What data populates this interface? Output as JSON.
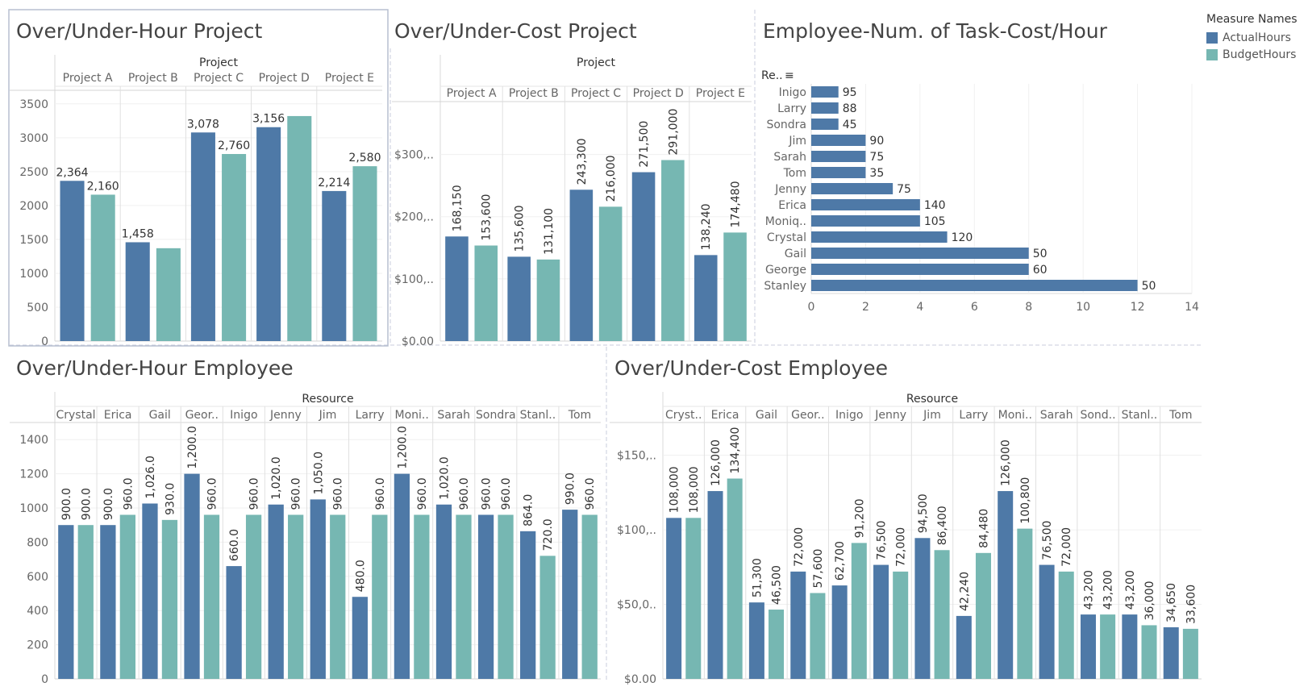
{
  "colors": {
    "actual": "#4e79a7",
    "budget": "#76b7b2",
    "grid": "#e6e6e6",
    "divider": "#c8cedd"
  },
  "legend": {
    "title": "Measure Names",
    "items": [
      {
        "label": "ActualHours",
        "color": "#4e79a7"
      },
      {
        "label": "BudgetHours",
        "color": "#76b7b2"
      }
    ]
  },
  "chart_data": [
    {
      "id": "hour-project",
      "type": "bar",
      "title": "Over/Under-Hour Project",
      "column_header": "Project",
      "categories": [
        "Project A",
        "Project B",
        "Project C",
        "Project D",
        "Project E"
      ],
      "series": [
        {
          "name": "ActualHours",
          "values": [
            2364,
            1458,
            3078,
            3156,
            2214
          ]
        },
        {
          "name": "BudgetHours",
          "values": [
            2160,
            1370,
            2760,
            3320,
            2580
          ]
        }
      ],
      "data_labels": [
        [
          "2,364",
          "1,458",
          "3,078",
          "3,156",
          "2,214"
        ],
        [
          "2,160",
          "",
          "2,760",
          "",
          "2,580"
        ]
      ],
      "yticks": [
        "0",
        "500",
        "1000",
        "1500",
        "2000",
        "2500",
        "3000",
        "3500"
      ],
      "ylim": [
        0,
        3700
      ]
    },
    {
      "id": "cost-project",
      "type": "bar",
      "title": "Over/Under-Cost Project",
      "column_header": "Project",
      "categories": [
        "Project A",
        "Project B",
        "Project C",
        "Project D",
        "Project E"
      ],
      "series": [
        {
          "name": "ActualHours",
          "values": [
            168150,
            135600,
            243300,
            271500,
            138240
          ]
        },
        {
          "name": "BudgetHours",
          "values": [
            153600,
            131100,
            216000,
            291000,
            174480
          ]
        }
      ],
      "data_labels": [
        [
          "168,150",
          "135,600",
          "243,300",
          "271,500",
          "138,240"
        ],
        [
          "153,600",
          "131,100",
          "216,000",
          "291,000",
          "174,480"
        ]
      ],
      "yticks": [
        "$0.00",
        "$100,..",
        "$200,..",
        "$300,.."
      ],
      "ylim": [
        0,
        385000
      ]
    },
    {
      "id": "employee-tasks",
      "type": "bar",
      "orientation": "horizontal",
      "title": "Employee-Num. of Task-Cost/Hour",
      "row_header": "Re..",
      "categories": [
        "Inigo",
        "Larry",
        "Sondra",
        "Jim",
        "Sarah",
        "Tom",
        "Jenny",
        "Erica",
        "Moniq..",
        "Crystal",
        "Gail",
        "George",
        "Stanley"
      ],
      "values": [
        1,
        1,
        1,
        2,
        2,
        2,
        3,
        4,
        4,
        5,
        8,
        8,
        12
      ],
      "data_labels": [
        "95",
        "88",
        "45",
        "90",
        "75",
        "35",
        "75",
        "140",
        "105",
        "120",
        "50",
        "60",
        "50"
      ],
      "xticks": [
        "0",
        "2",
        "4",
        "6",
        "8",
        "10",
        "12",
        "14"
      ],
      "xlim": [
        0,
        14
      ]
    },
    {
      "id": "hour-employee",
      "type": "bar",
      "title": "Over/Under-Hour Employee",
      "column_header": "Resource",
      "categories": [
        "Crystal",
        "Erica",
        "Gail",
        "Geor..",
        "Inigo",
        "Jenny",
        "Jim",
        "Larry",
        "Moni..",
        "Sarah",
        "Sondra",
        "Stanl..",
        "Tom"
      ],
      "series": [
        {
          "name": "ActualHours",
          "values": [
            900,
            900,
            1026,
            1200,
            660,
            1020,
            1050,
            480,
            1200,
            1020,
            960,
            864,
            990
          ]
        },
        {
          "name": "BudgetHours",
          "values": [
            900,
            960,
            930,
            960,
            960,
            960,
            960,
            960,
            960,
            960,
            960,
            720,
            960
          ]
        }
      ],
      "data_labels": [
        [
          "900.0",
          "900.0",
          "1,026.0",
          "1,200.0",
          "660.0",
          "1,020.0",
          "1,050.0",
          "480.0",
          "1,200.0",
          "1,020.0",
          "960.0",
          "864.0",
          "990.0"
        ],
        [
          "900.0",
          "960.0",
          "930.0",
          "960.0",
          "960.0",
          "960.0",
          "960.0",
          "960.0",
          "960.0",
          "960.0",
          "960.0",
          "720.0",
          "960.0"
        ]
      ],
      "yticks": [
        "0",
        "200",
        "400",
        "600",
        "800",
        "1000",
        "1200",
        "1400"
      ],
      "ylim": [
        0,
        1500
      ]
    },
    {
      "id": "cost-employee",
      "type": "bar",
      "title": "Over/Under-Cost Employee",
      "column_header": "Resource",
      "categories": [
        "Cryst..",
        "Erica",
        "Gail",
        "Geor..",
        "Inigo",
        "Jenny",
        "Jim",
        "Larry",
        "Moni..",
        "Sarah",
        "Sond..",
        "Stanl..",
        "Tom"
      ],
      "series": [
        {
          "name": "ActualHours",
          "values": [
            108000,
            126000,
            51300,
            72000,
            62700,
            76500,
            94500,
            42240,
            126000,
            76500,
            43200,
            43200,
            34650
          ]
        },
        {
          "name": "BudgetHours",
          "values": [
            108000,
            134400,
            46500,
            57600,
            91200,
            72000,
            86400,
            84480,
            100800,
            72000,
            43200,
            36000,
            33600
          ]
        }
      ],
      "data_labels": [
        [
          "108,000",
          "126,000",
          "51,300",
          "72,000",
          "62,700",
          "76,500",
          "94,500",
          "42,240",
          "126,000",
          "76,500",
          "43,200",
          "43,200",
          "34,650"
        ],
        [
          "108,000",
          "134,400",
          "46,500",
          "57,600",
          "91,200",
          "72,000",
          "86,400",
          "84,480",
          "100,800",
          "72,000",
          "43,200",
          "36,000",
          "33,600"
        ]
      ],
      "yticks": [
        "$0.00",
        "$50,0..",
        "$100,..",
        "$150,.."
      ],
      "ylim": [
        0,
        172000
      ]
    }
  ]
}
